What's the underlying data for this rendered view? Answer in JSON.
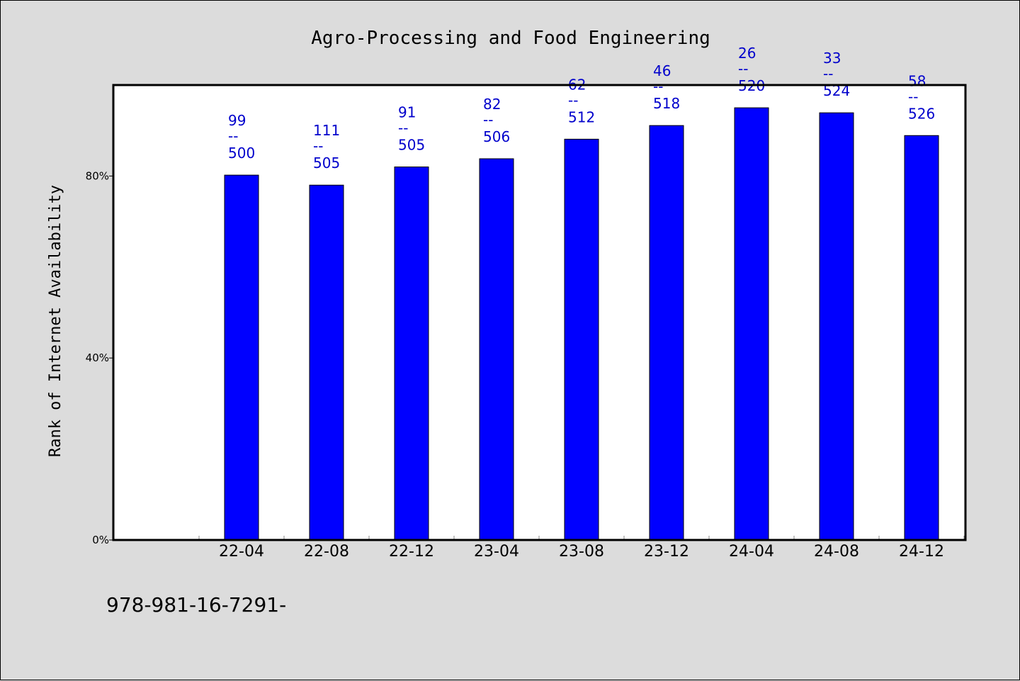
{
  "colors": {
    "background": "#dcdcdc",
    "plot_background": "#ffffff",
    "bar": "#0000ff",
    "bar_label": "#0000cc",
    "axis": "#000000"
  },
  "footer": {
    "code": "978-981-16-7291-"
  },
  "chart_data": {
    "type": "bar",
    "title": "Agro-Processing and Food Engineering",
    "xlabel": "",
    "ylabel": "Rank of Internet Availability",
    "ylim": [
      0,
      100
    ],
    "y_ticks": [
      0,
      40,
      80
    ],
    "y_tick_labels": [
      "0%",
      "40%",
      "80%"
    ],
    "grid": false,
    "categories": [
      "22-04",
      "22-08",
      "22-12",
      "23-04",
      "23-08",
      "23-12",
      "24-04",
      "24-08",
      "24-12"
    ],
    "values": [
      80.2,
      78.0,
      82.0,
      83.8,
      88.1,
      91.1,
      95.0,
      93.9,
      88.9
    ],
    "labels": [
      {
        "top": "99",
        "sep": "--",
        "bottom": "500"
      },
      {
        "top": "111",
        "sep": "--",
        "bottom": "505"
      },
      {
        "top": "91",
        "sep": "--",
        "bottom": "505"
      },
      {
        "top": "82",
        "sep": "--",
        "bottom": "506"
      },
      {
        "top": "62",
        "sep": "--",
        "bottom": "512"
      },
      {
        "top": "46",
        "sep": "--",
        "bottom": "518"
      },
      {
        "top": "26",
        "sep": "--",
        "bottom": "520"
      },
      {
        "top": "33",
        "sep": "--",
        "bottom": "524"
      },
      {
        "top": "58",
        "sep": "--",
        "bottom": "526"
      }
    ]
  }
}
